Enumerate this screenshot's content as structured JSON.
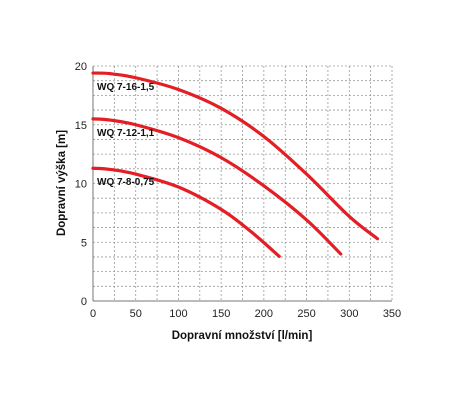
{
  "chart_data": {
    "type": "line",
    "title": "",
    "xlabel": "Dopravní množství [l/min]",
    "ylabel": "Dopravní výška [m]",
    "xlim": [
      0,
      350
    ],
    "ylim": [
      0,
      20
    ],
    "x_ticks": [
      0,
      50,
      100,
      150,
      200,
      250,
      300,
      350
    ],
    "y_ticks": [
      0,
      5,
      10,
      15,
      20
    ],
    "x_tick_labels": [
      "0",
      "50",
      "100",
      "150",
      "200",
      "250",
      "300",
      "350"
    ],
    "y_tick_labels": [
      "0",
      "5",
      "10",
      "15",
      "20"
    ],
    "grid": true,
    "legend": "none",
    "line_color": "#e31e24",
    "series": [
      {
        "name": "WQ 7-16-1,5",
        "x": [
          0,
          20,
          50,
          100,
          150,
          200,
          250,
          300,
          333
        ],
        "y": [
          19.4,
          19.35,
          19.0,
          18.0,
          16.4,
          14.0,
          10.8,
          7.2,
          5.3
        ]
      },
      {
        "name": "WQ 7-12-1,1",
        "x": [
          0,
          20,
          50,
          100,
          150,
          200,
          250,
          290
        ],
        "y": [
          15.5,
          15.4,
          15.0,
          13.9,
          12.2,
          9.8,
          6.9,
          4.0
        ]
      },
      {
        "name": "WQ 7-8-0,75",
        "x": [
          0,
          20,
          50,
          100,
          150,
          185,
          218
        ],
        "y": [
          11.3,
          11.2,
          10.8,
          9.7,
          7.8,
          5.9,
          3.8
        ]
      }
    ]
  }
}
